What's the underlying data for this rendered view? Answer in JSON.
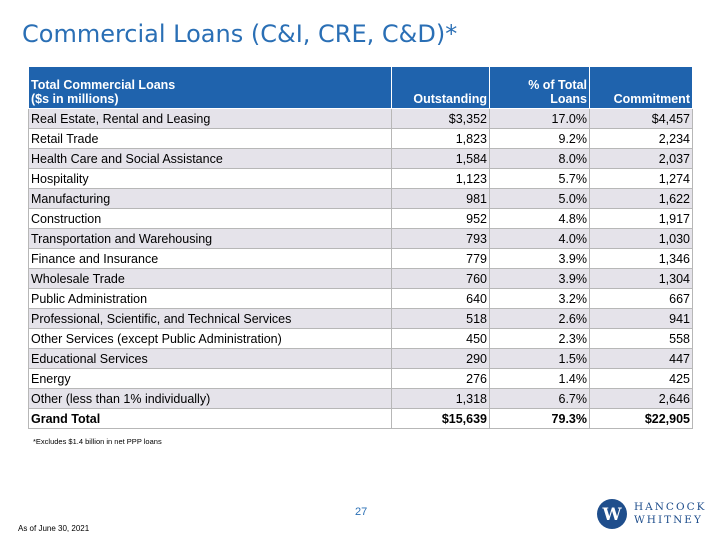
{
  "title": "Commercial Loans (C&I, CRE, C&D)*",
  "table": {
    "headers": {
      "category_line1": "Total Commercial Loans",
      "category_line2": "($s in millions)",
      "outstanding": "Outstanding",
      "pct_line1": "% of Total",
      "pct_line2": "Loans",
      "commitment": "Commitment"
    },
    "rows": [
      {
        "category": "Real Estate, Rental and Leasing",
        "outstanding": "$3,352",
        "pct": "17.0%",
        "commitment": "$4,457"
      },
      {
        "category": "Retail Trade",
        "outstanding": "1,823",
        "pct": "9.2%",
        "commitment": "2,234"
      },
      {
        "category": "Health Care and Social Assistance",
        "outstanding": "1,584",
        "pct": "8.0%",
        "commitment": "2,037"
      },
      {
        "category": "Hospitality",
        "outstanding": "1,123",
        "pct": "5.7%",
        "commitment": "1,274"
      },
      {
        "category": "Manufacturing",
        "outstanding": "981",
        "pct": "5.0%",
        "commitment": "1,622"
      },
      {
        "category": "Construction",
        "outstanding": "952",
        "pct": "4.8%",
        "commitment": "1,917"
      },
      {
        "category": "Transportation and Warehousing",
        "outstanding": "793",
        "pct": "4.0%",
        "commitment": "1,030"
      },
      {
        "category": "Finance and Insurance",
        "outstanding": "779",
        "pct": "3.9%",
        "commitment": "1,346"
      },
      {
        "category": "Wholesale Trade",
        "outstanding": "760",
        "pct": "3.9%",
        "commitment": "1,304"
      },
      {
        "category": "Public Administration",
        "outstanding": "640",
        "pct": "3.2%",
        "commitment": "667"
      },
      {
        "category": "Professional, Scientific, and Technical Services",
        "outstanding": "518",
        "pct": "2.6%",
        "commitment": "941"
      },
      {
        "category": "Other Services (except Public Administration)",
        "outstanding": "450",
        "pct": "2.3%",
        "commitment": "558"
      },
      {
        "category": "Educational Services",
        "outstanding": "290",
        "pct": "1.5%",
        "commitment": "447"
      },
      {
        "category": "Energy",
        "outstanding": "276",
        "pct": "1.4%",
        "commitment": "425"
      },
      {
        "category": "Other (less than 1% individually)",
        "outstanding": "1,318",
        "pct": "6.7%",
        "commitment": "2,646"
      }
    ],
    "total": {
      "category": "Grand Total",
      "outstanding": "$15,639",
      "pct": "79.3%",
      "commitment": "$22,905"
    }
  },
  "footnote": "*Excludes $1.4 billion in net PPP loans",
  "page_number": "27",
  "as_of": "As of June 30, 2021",
  "logo": {
    "line1": "HANCOCK",
    "line2": "WHITNEY",
    "mark_letter": "W"
  },
  "colors": {
    "title": "#2a6fb5",
    "header_bg": "#1f63ad",
    "row_shade": "#e5e3ea",
    "logo": "#1f4e8c"
  }
}
